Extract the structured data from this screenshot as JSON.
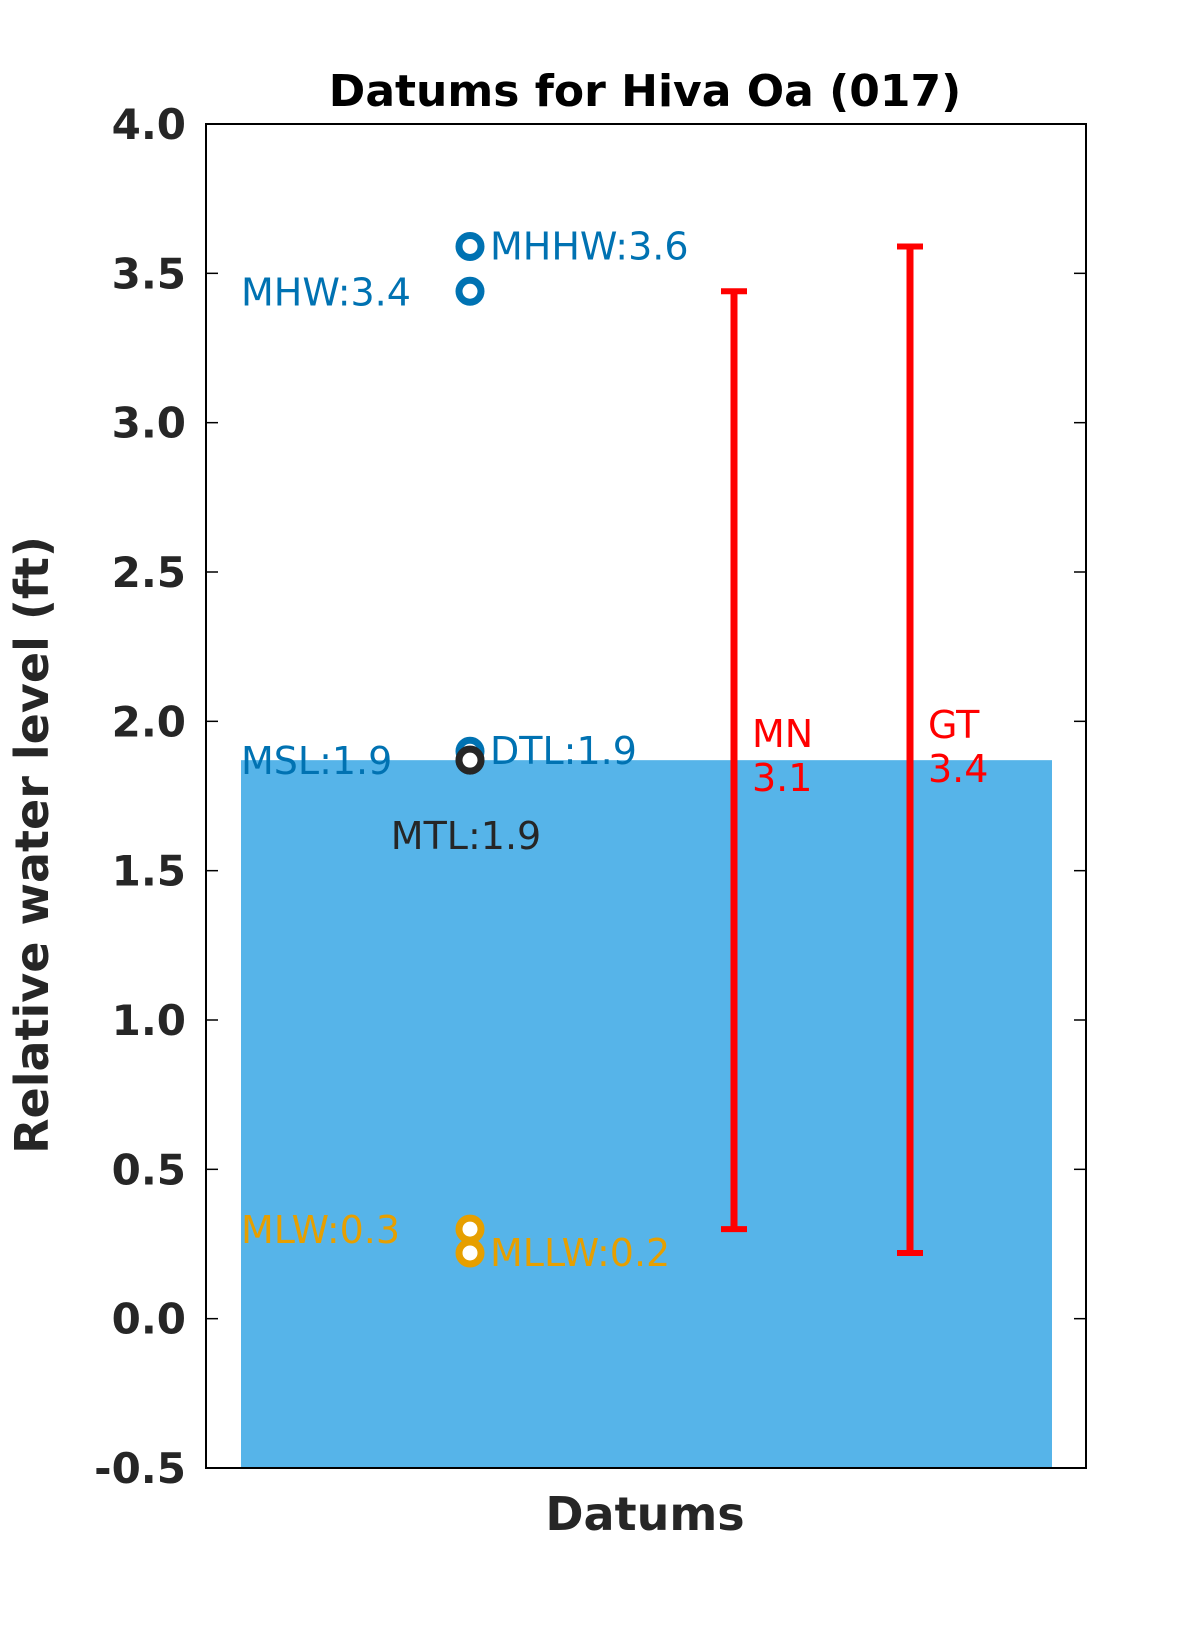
{
  "chart_data": {
    "type": "scatter",
    "title": "Datums for Hiva Oa (017)",
    "xlabel": "Datums",
    "ylabel": "Relative water level (ft)",
    "ylim": [
      -0.5,
      4.0
    ],
    "yticks": [
      4.0,
      3.5,
      3.0,
      2.5,
      2.0,
      1.5,
      1.0,
      0.5,
      0.0,
      -0.5
    ],
    "ytick_labels": [
      "4.0",
      "3.5",
      "3.0",
      "2.5",
      "2.0",
      "1.5",
      "1.0",
      "0.5",
      "0.0",
      "-0.5"
    ],
    "grid": false,
    "background_fill": {
      "from": -0.5,
      "to": 1.87,
      "color": "#56b4e9"
    },
    "points": [
      {
        "name": "MHHW",
        "value": 3.59,
        "label": "MHHW:3.6",
        "color": "#0072b2",
        "label_side": "right"
      },
      {
        "name": "MHW",
        "value": 3.44,
        "label": "MHW:3.4",
        "color": "#0072b2",
        "label_side": "left"
      },
      {
        "name": "DTL",
        "value": 1.9,
        "label": "DTL:1.9",
        "color": "#0072b2",
        "label_side": "right"
      },
      {
        "name": "MSL",
        "value": 1.87,
        "label": "MSL:1.9",
        "color": "#0072b2",
        "label_side": "left"
      },
      {
        "name": "MTL",
        "value": 1.87,
        "label": "MTL:1.9",
        "color": "#262626",
        "label_side": "below"
      },
      {
        "name": "MLW",
        "value": 0.3,
        "label": "MLW:0.3",
        "color": "#e69f00",
        "label_side": "left"
      },
      {
        "name": "MLLW",
        "value": 0.22,
        "label": "MLLW:0.2",
        "color": "#e69f00",
        "label_side": "right"
      }
    ],
    "ranges": [
      {
        "name": "MN",
        "label_line1": "MN",
        "label_line2": "3.1",
        "from": 0.3,
        "to": 3.44,
        "color": "#ff0000"
      },
      {
        "name": "GT",
        "label_line1": "GT",
        "label_line2": "3.4",
        "from": 0.22,
        "to": 3.59,
        "color": "#ff0000"
      }
    ]
  }
}
